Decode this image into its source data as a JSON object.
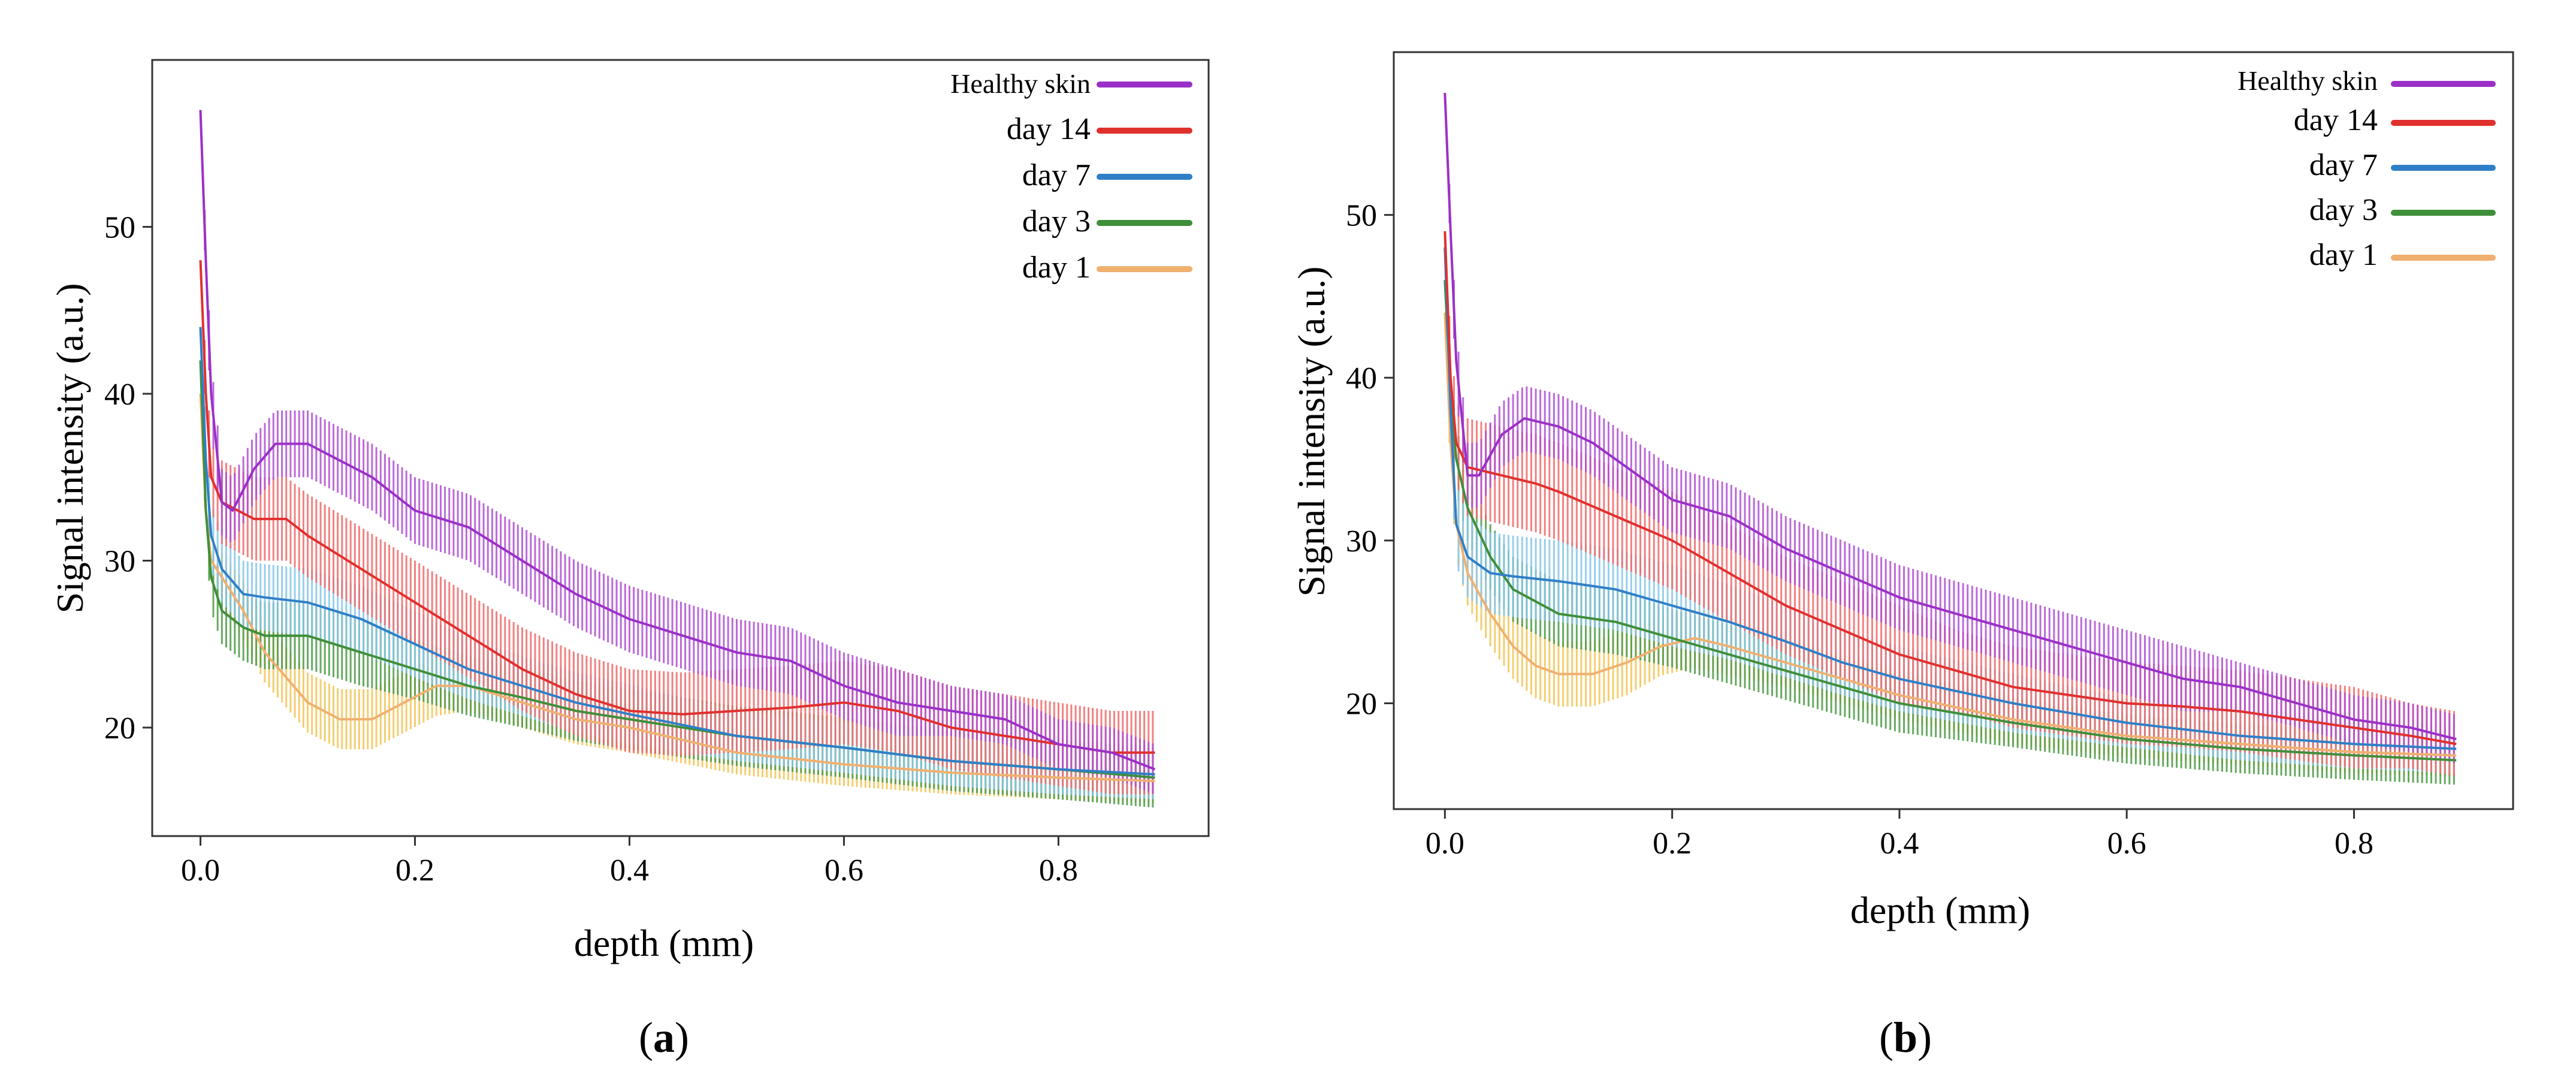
{
  "colors": {
    "healthy_skin": "#9b30c8",
    "day_14": "#e0302e",
    "day_7": "#2f7fc7",
    "day_3": "#3f8f3a",
    "day_1": "#f0b070",
    "band_healthy_skin": "#b04fd0",
    "band_day_14": "#f06a6a",
    "band_day_7": "#86c6ea",
    "band_day_3": "#4a9a44",
    "band_day_1": "#f2c455"
  },
  "chart_data": [
    {
      "type": "line",
      "panel_label": {
        "open": "(",
        "letter": "a",
        "close": ")"
      },
      "xlabel": "depth (mm)",
      "ylabel": "Signal intensity (a.u.)",
      "xlim": [
        -0.045,
        0.94
      ],
      "ylim": [
        13.5,
        60
      ],
      "xticks": [
        0.0,
        0.2,
        0.4,
        0.6,
        0.8
      ],
      "xtick_labels": [
        "0.0",
        "0.2",
        "0.4",
        "0.6",
        "0.8"
      ],
      "yticks": [
        20,
        30,
        40,
        50
      ],
      "ytick_labels": [
        "20",
        "30",
        "40",
        "50"
      ],
      "grid": false,
      "legend_position": "top-right",
      "series": [
        {
          "key": "healthy_skin",
          "name": "Healthy skin",
          "x": [
            0.0,
            0.005,
            0.01,
            0.02,
            0.03,
            0.05,
            0.07,
            0.1,
            0.13,
            0.16,
            0.2,
            0.25,
            0.3,
            0.35,
            0.4,
            0.45,
            0.5,
            0.55,
            0.6,
            0.65,
            0.7,
            0.75,
            0.8,
            0.85,
            0.89
          ],
          "y": [
            57,
            48,
            40,
            33.5,
            33,
            35.5,
            37,
            37,
            36,
            35,
            33,
            32,
            30,
            28,
            26.5,
            25.5,
            24.5,
            24,
            22.5,
            21.5,
            21,
            20.5,
            19,
            18.5,
            17.5
          ],
          "err": [
            0,
            1.5,
            2,
            2,
            2,
            2,
            2,
            2,
            2,
            2,
            2,
            2,
            2,
            2,
            2,
            2,
            2,
            2,
            2,
            2,
            1.5,
            1.5,
            1.5,
            1.5,
            1.5
          ]
        },
        {
          "key": "day_14",
          "name": "day 14",
          "x": [
            0.0,
            0.005,
            0.01,
            0.02,
            0.05,
            0.08,
            0.1,
            0.15,
            0.2,
            0.25,
            0.3,
            0.35,
            0.4,
            0.45,
            0.5,
            0.55,
            0.6,
            0.65,
            0.7,
            0.75,
            0.8,
            0.85,
            0.89
          ],
          "y": [
            48,
            40,
            35,
            33.5,
            32.5,
            32.5,
            31.5,
            29.5,
            27.5,
            25.5,
            23.5,
            22,
            21,
            20.8,
            21,
            21.2,
            21.5,
            21,
            20,
            19.5,
            19,
            18.5,
            18.5
          ],
          "err": [
            0,
            2,
            2,
            2.5,
            2.5,
            2.5,
            2.5,
            2.5,
            2.5,
            2.5,
            2.5,
            2.5,
            2.5,
            2.5,
            2.5,
            2.5,
            2.5,
            2.5,
            2.5,
            2.5,
            2.5,
            2.5,
            2.5
          ]
        },
        {
          "key": "day_7",
          "name": "day 7",
          "x": [
            0.0,
            0.005,
            0.01,
            0.02,
            0.04,
            0.06,
            0.1,
            0.15,
            0.2,
            0.25,
            0.3,
            0.35,
            0.4,
            0.5,
            0.6,
            0.7,
            0.8,
            0.89
          ],
          "y": [
            44,
            36,
            31.5,
            29.5,
            28,
            27.8,
            27.5,
            26.5,
            25,
            23.5,
            22.5,
            21.5,
            20.8,
            19.5,
            18.8,
            18,
            17.5,
            17.2
          ],
          "err": [
            0,
            2,
            2,
            2,
            2,
            2,
            2,
            2,
            2,
            1.8,
            1.8,
            1.8,
            1.8,
            1.5,
            1.5,
            1.5,
            1.5,
            1.5
          ]
        },
        {
          "key": "day_3",
          "name": "day 3",
          "x": [
            0.0,
            0.005,
            0.01,
            0.02,
            0.04,
            0.06,
            0.1,
            0.15,
            0.2,
            0.25,
            0.3,
            0.35,
            0.4,
            0.5,
            0.6,
            0.7,
            0.8,
            0.89
          ],
          "y": [
            42,
            33,
            29,
            27,
            26,
            25.5,
            25.5,
            24.5,
            23.5,
            22.5,
            21.8,
            21,
            20.5,
            19.5,
            18.8,
            18,
            17.5,
            17
          ],
          "err": [
            0,
            1.5,
            2,
            2,
            2,
            2,
            2,
            2,
            1.8,
            1.8,
            1.8,
            1.8,
            1.8,
            1.8,
            1.8,
            1.8,
            1.8,
            1.8
          ]
        },
        {
          "key": "day_1",
          "name": "day 1",
          "x": [
            0.0,
            0.005,
            0.01,
            0.02,
            0.04,
            0.06,
            0.08,
            0.1,
            0.13,
            0.16,
            0.19,
            0.22,
            0.25,
            0.3,
            0.35,
            0.4,
            0.5,
            0.6,
            0.7,
            0.8,
            0.89
          ],
          "y": [
            40,
            33,
            30,
            29,
            27,
            24.5,
            23,
            21.5,
            20.5,
            20.5,
            21.5,
            22.5,
            22.5,
            21.5,
            20.5,
            20,
            18.5,
            17.8,
            17.3,
            17,
            16.8
          ],
          "err": [
            0,
            1.5,
            1.5,
            1.5,
            1.8,
            1.8,
            1.8,
            1.8,
            1.8,
            1.8,
            1.8,
            1.8,
            1.5,
            1.5,
            1.5,
            1.5,
            1.3,
            1.3,
            1.3,
            1.3,
            1.3
          ]
        }
      ]
    },
    {
      "type": "line",
      "panel_label": {
        "open": "(",
        "letter": "b",
        "close": ")"
      },
      "xlabel": "depth (mm)",
      "ylabel": "Signal intensity (a.u.)",
      "xlim": [
        -0.045,
        0.94
      ],
      "ylim": [
        13.5,
        60
      ],
      "xticks": [
        0.0,
        0.2,
        0.4,
        0.6,
        0.8
      ],
      "xtick_labels": [
        "0.0",
        "0.2",
        "0.4",
        "0.6",
        "0.8"
      ],
      "yticks": [
        20,
        30,
        40,
        50
      ],
      "ytick_labels": [
        "20",
        "30",
        "40",
        "50"
      ],
      "grid": false,
      "legend_position": "top-right",
      "series": [
        {
          "key": "healthy_skin",
          "name": "Healthy skin",
          "x": [
            0.0,
            0.005,
            0.01,
            0.02,
            0.03,
            0.05,
            0.07,
            0.1,
            0.13,
            0.16,
            0.2,
            0.25,
            0.3,
            0.35,
            0.4,
            0.45,
            0.5,
            0.55,
            0.6,
            0.65,
            0.7,
            0.75,
            0.8,
            0.85,
            0.89
          ],
          "y": [
            57.5,
            49,
            41,
            34,
            34,
            36.5,
            37.5,
            37,
            36,
            34.5,
            32.5,
            31.5,
            29.5,
            28,
            26.5,
            25.5,
            24.5,
            23.5,
            22.5,
            21.5,
            21,
            20,
            19,
            18.5,
            17.8
          ],
          "err": [
            0,
            1.5,
            2,
            2,
            2,
            2,
            2,
            2,
            2,
            2,
            2,
            2,
            2,
            2,
            2,
            2,
            2,
            2,
            2,
            2,
            1.5,
            1.5,
            1.5,
            1.5,
            1.5
          ]
        },
        {
          "key": "day_14",
          "name": "day 14",
          "x": [
            0.0,
            0.005,
            0.01,
            0.02,
            0.05,
            0.08,
            0.1,
            0.15,
            0.2,
            0.25,
            0.3,
            0.35,
            0.4,
            0.45,
            0.5,
            0.55,
            0.6,
            0.65,
            0.7,
            0.75,
            0.8,
            0.85,
            0.89
          ],
          "y": [
            49,
            40,
            36,
            34.5,
            34,
            33.5,
            33,
            31.5,
            30,
            28,
            26,
            24.5,
            23,
            22,
            21,
            20.5,
            20,
            19.8,
            19.5,
            19,
            18.5,
            18,
            17.5
          ],
          "err": [
            0,
            2.5,
            2.5,
            3,
            3,
            3,
            3,
            3,
            3,
            3,
            3,
            3,
            3,
            2.5,
            2.5,
            2.5,
            2.5,
            2.5,
            2.5,
            2.5,
            2.5,
            2,
            2
          ]
        },
        {
          "key": "day_7",
          "name": "day 7",
          "x": [
            0.0,
            0.005,
            0.01,
            0.02,
            0.04,
            0.06,
            0.1,
            0.15,
            0.2,
            0.25,
            0.3,
            0.35,
            0.4,
            0.5,
            0.6,
            0.7,
            0.8,
            0.89
          ],
          "y": [
            48,
            38,
            31,
            29,
            28,
            27.8,
            27.5,
            27,
            26,
            25,
            23.8,
            22.5,
            21.5,
            20,
            18.8,
            18,
            17.5,
            17.2
          ],
          "err": [
            0,
            2.5,
            2.5,
            2.5,
            2.5,
            2.5,
            2.5,
            2.5,
            2.5,
            2.3,
            2.2,
            2,
            2,
            1.8,
            1.5,
            1.5,
            1.5,
            1.5
          ]
        },
        {
          "key": "day_3",
          "name": "day 3",
          "x": [
            0.0,
            0.005,
            0.01,
            0.02,
            0.04,
            0.06,
            0.1,
            0.15,
            0.2,
            0.25,
            0.3,
            0.35,
            0.4,
            0.5,
            0.6,
            0.7,
            0.8,
            0.89
          ],
          "y": [
            46,
            39,
            35,
            32,
            29,
            27,
            25.5,
            25,
            24,
            23,
            22,
            21,
            20,
            18.8,
            17.8,
            17.2,
            16.8,
            16.5
          ],
          "err": [
            0,
            2,
            2,
            2,
            2,
            2,
            2,
            2,
            1.8,
            1.8,
            1.8,
            1.8,
            1.8,
            1.5,
            1.5,
            1.5,
            1.5,
            1.5
          ]
        },
        {
          "key": "day_1",
          "name": "day 1",
          "x": [
            0.0,
            0.005,
            0.01,
            0.02,
            0.04,
            0.06,
            0.08,
            0.1,
            0.13,
            0.16,
            0.19,
            0.22,
            0.25,
            0.3,
            0.35,
            0.4,
            0.5,
            0.6,
            0.7,
            0.8,
            0.89
          ],
          "y": [
            44,
            36,
            31,
            28,
            25.5,
            23.5,
            22.3,
            21.8,
            21.8,
            22.5,
            23.5,
            24,
            23.5,
            22.5,
            21.5,
            20.5,
            19,
            18,
            17.5,
            17,
            16.8
          ],
          "err": [
            0,
            2,
            2,
            2,
            2,
            2,
            2,
            2,
            2,
            2,
            1.8,
            1.8,
            1.8,
            1.5,
            1.5,
            1.5,
            1.5,
            1.3,
            1.3,
            1.3,
            1.3
          ]
        }
      ]
    }
  ]
}
